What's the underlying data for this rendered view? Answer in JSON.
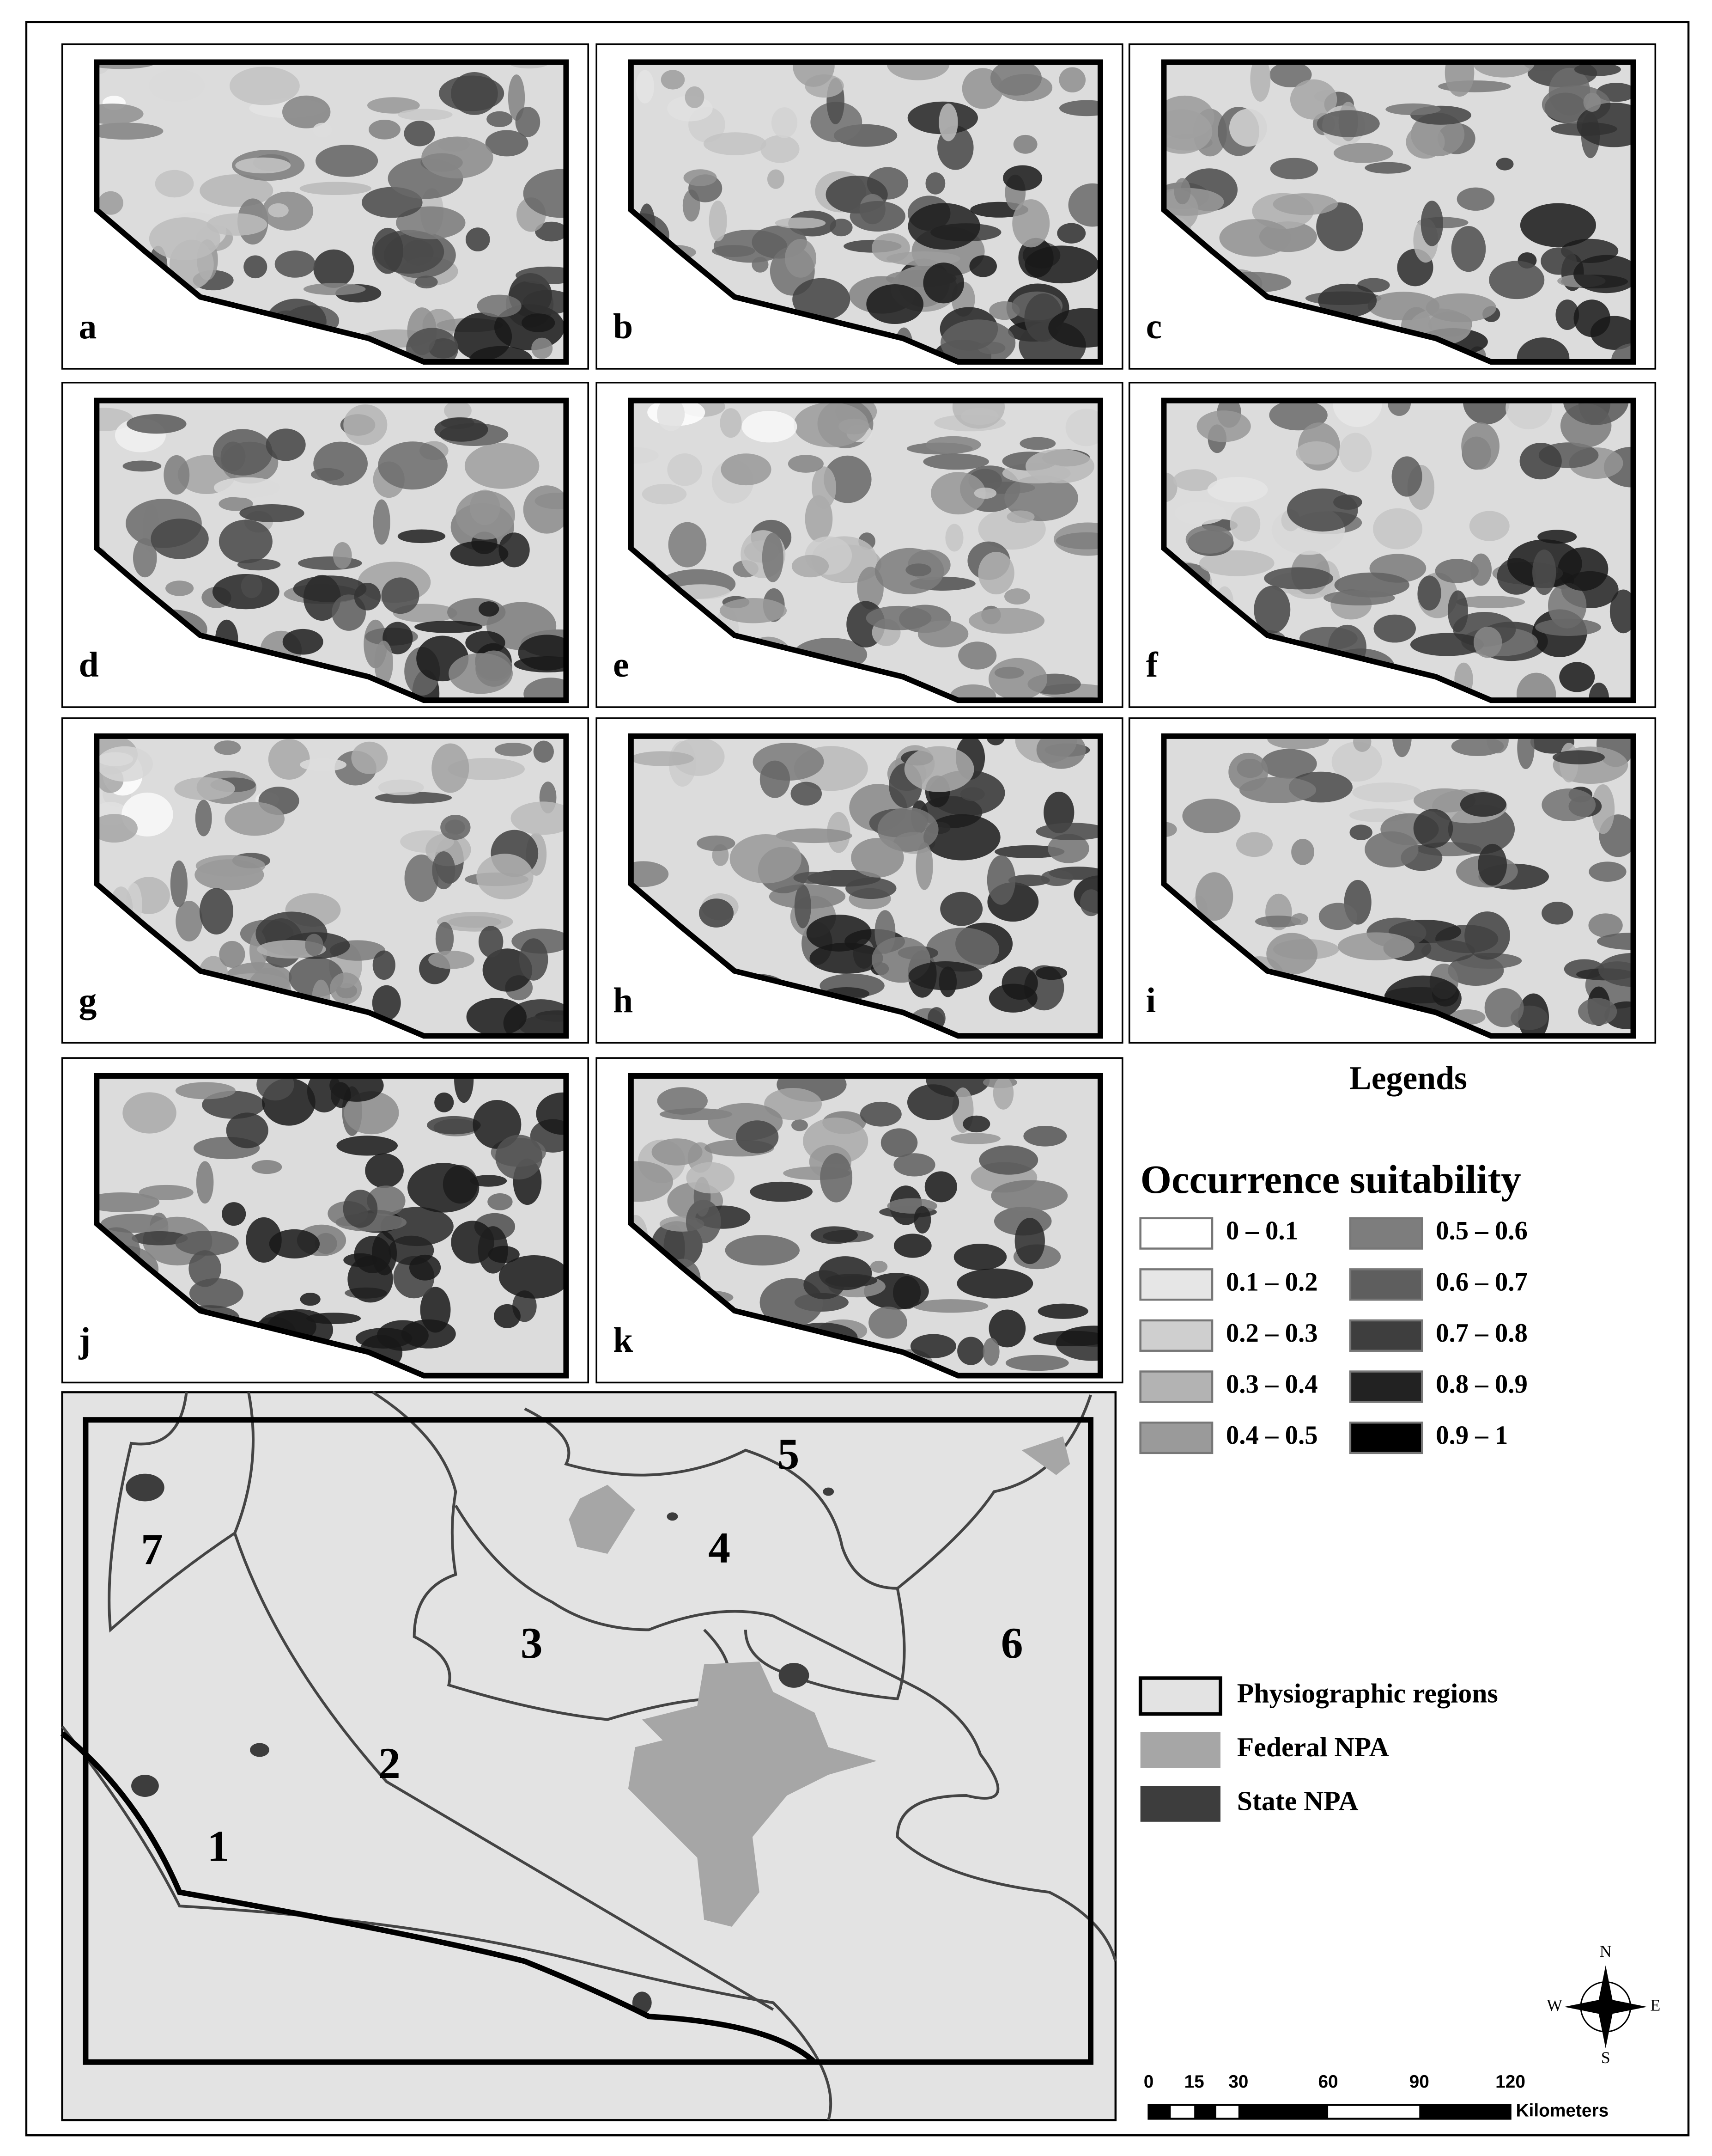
{
  "panels": [
    {
      "label": "a"
    },
    {
      "label": "b"
    },
    {
      "label": "c"
    },
    {
      "label": "d"
    },
    {
      "label": "e"
    },
    {
      "label": "f"
    },
    {
      "label": "g"
    },
    {
      "label": "h"
    },
    {
      "label": "i"
    },
    {
      "label": "j"
    },
    {
      "label": "k"
    }
  ],
  "legend": {
    "title": "Legends",
    "subtitle": "Occurrence suitability",
    "classes": [
      {
        "label": "0 – 0.1",
        "color": "#ffffff"
      },
      {
        "label": "0.1 – 0.2",
        "color": "#e6e6e6"
      },
      {
        "label": "0.2 – 0.3",
        "color": "#cfcfcf"
      },
      {
        "label": "0.3 – 0.4",
        "color": "#b3b3b3"
      },
      {
        "label": "0.4 – 0.5",
        "color": "#9a9a9a"
      },
      {
        "label": "0.5 – 0.6",
        "color": "#7d7d7d"
      },
      {
        "label": "0.6 – 0.7",
        "color": "#5e5e5e"
      },
      {
        "label": "0.7 – 0.8",
        "color": "#3e3e3e"
      },
      {
        "label": "0.8 – 0.9",
        "color": "#222222"
      },
      {
        "label": "0.9 – 1",
        "color": "#000000"
      }
    ]
  },
  "region_map": {
    "regions": [
      "1",
      "2",
      "3",
      "4",
      "5",
      "6",
      "7"
    ],
    "legend": [
      {
        "label": "Physiographic regions",
        "color": "#e3e3e3"
      },
      {
        "label": "Federal NPA",
        "color": "#a6a6a6"
      },
      {
        "label": "State NPA",
        "color": "#3d3d3d"
      }
    ],
    "compass": [
      "N",
      "E",
      "S",
      "W"
    ],
    "scale": {
      "ticks": [
        "0",
        "15",
        "30",
        "60",
        "90",
        "120"
      ],
      "unit": "Kilometers"
    }
  }
}
